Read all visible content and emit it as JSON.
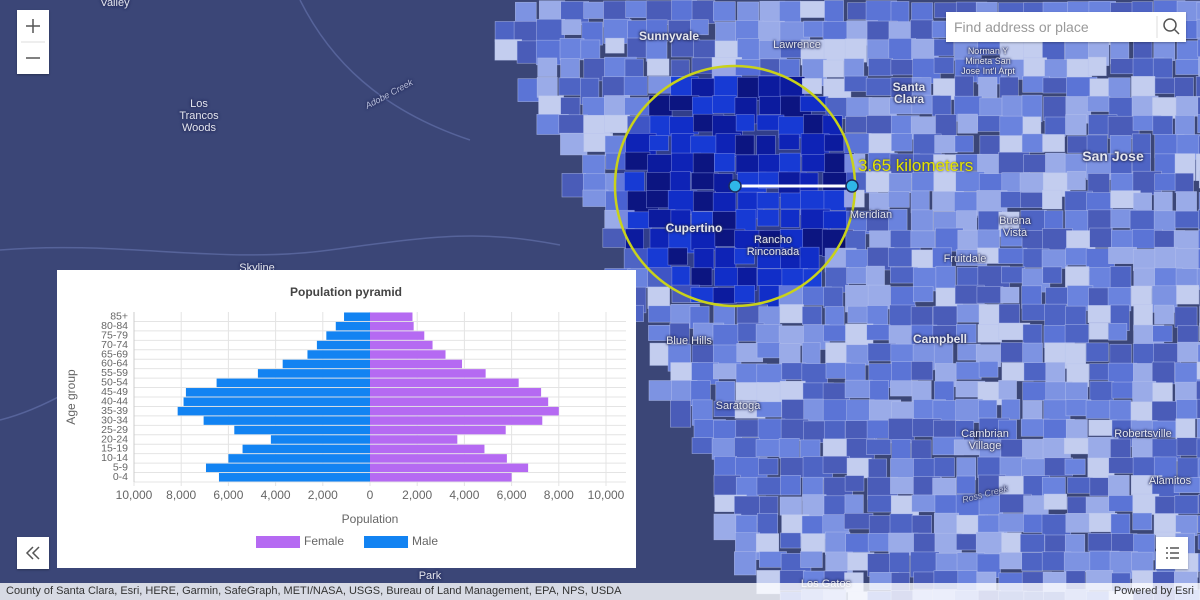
{
  "map": {
    "places": [
      "Valley",
      "Los Trancos Woods",
      "Skyline",
      "Sunnyvale",
      "Lawrence",
      "Santa Clara",
      "Norman Y Mineta San Jose Int'l Arpt",
      "San Jose",
      "Cupertino",
      "Rancho Rinconada",
      "Meridian",
      "Buena Vista",
      "Fruitdale",
      "Blue Hills",
      "Campbell",
      "Saratoga",
      "Cambrian Village",
      "Robertsville",
      "Alamitos",
      "Los Gatos",
      "Park",
      "Adobe Creek",
      "Ross Creek"
    ],
    "measurement": "3.65 kilometers",
    "search_placeholder": "Find address or place",
    "attribution": "County of Santa Clara, Esri, HERE, Garmin, SafeGraph, METI/NASA, USGS, Bureau of Land Management, EPA, NPS, USDA",
    "powered_by": "Powered by Esri"
  },
  "chart_data": {
    "type": "pyramid",
    "title": "Population pyramid",
    "x_label": "Population",
    "y_label": "Age group",
    "categories": [
      "0-4",
      "5-9",
      "10-14",
      "15-19",
      "20-24",
      "25-29",
      "30-34",
      "35-39",
      "40-44",
      "45-49",
      "50-54",
      "55-59",
      "60-64",
      "65-69",
      "70-74",
      "75-79",
      "80-84",
      "85+"
    ],
    "series": [
      {
        "name": "Female",
        "color": "#b56af2",
        "values": [
          6000,
          6700,
          5800,
          4850,
          3700,
          5750,
          7300,
          8000,
          7550,
          7250,
          6300,
          4900,
          3900,
          3200,
          2650,
          2300,
          1850,
          1800
        ]
      },
      {
        "name": "Male",
        "color": "#1283f2",
        "values": [
          6400,
          6950,
          6000,
          5400,
          4200,
          5750,
          7050,
          8150,
          7900,
          7800,
          6500,
          4750,
          3700,
          2650,
          2250,
          1850,
          1450,
          1100
        ]
      }
    ],
    "xlim": [
      -10000,
      10000
    ],
    "xticks": [
      {
        "value": -10000,
        "label": "10,000"
      },
      {
        "value": -8000,
        "label": "8,000"
      },
      {
        "value": -6000,
        "label": "6,000"
      },
      {
        "value": -4000,
        "label": "4,000"
      },
      {
        "value": -2000,
        "label": "2,000"
      },
      0,
      {
        "value": 2000,
        "label": "2,000"
      },
      {
        "value": 4000,
        "label": "4,000"
      },
      {
        "value": 6000,
        "label": "6,000"
      },
      {
        "value": 8000,
        "label": "8,000"
      },
      {
        "value": 10000,
        "label": "10,000"
      }
    ],
    "grid": true,
    "legend": "bottom"
  }
}
